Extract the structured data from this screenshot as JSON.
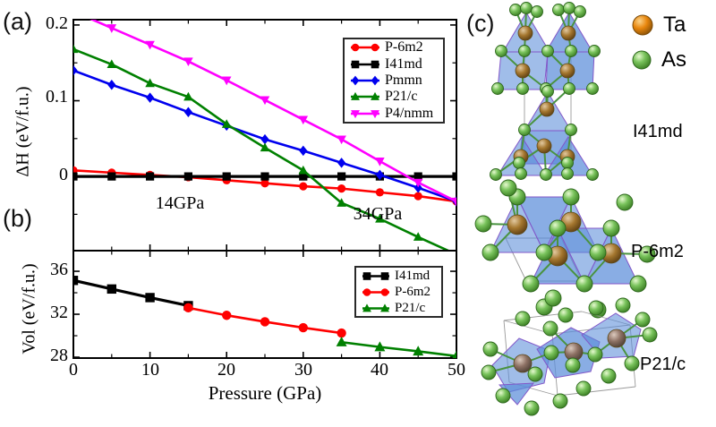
{
  "panel_labels": {
    "a": "(a)",
    "b": "(b)",
    "c": "(c)"
  },
  "chart_data": [
    {
      "id": "enthalpy-vs-pressure",
      "type": "line",
      "ylabel": "ΔH (eV/f.u.)",
      "xlim": [
        0,
        50
      ],
      "ylim": [
        -0.098,
        0.207
      ],
      "grid": false,
      "legend_position": "upper right",
      "x": [
        0,
        5,
        10,
        15,
        20,
        25,
        30,
        35,
        40,
        45,
        50
      ],
      "series": [
        {
          "name": "P-6m2",
          "color": "#ff0000",
          "marker": "circle",
          "values": [
            0.008,
            0.005,
            0.002,
            -0.001,
            -0.005,
            -0.009,
            -0.013,
            -0.016,
            -0.021,
            -0.026,
            -0.033
          ]
        },
        {
          "name": "I41md",
          "color": "#000000",
          "marker": "square",
          "values": [
            0,
            0,
            0,
            0,
            0,
            0,
            0,
            0,
            0,
            0,
            0
          ]
        },
        {
          "name": "Pmmn",
          "color": "#0000ee",
          "marker": "diamond",
          "values": [
            0.14,
            0.121,
            0.104,
            0.085,
            0.067,
            0.049,
            0.034,
            0.018,
            0.002,
            -0.015,
            -0.033
          ]
        },
        {
          "name": "P21/c",
          "color": "#008000",
          "marker": "triangle-up",
          "values": [
            0.168,
            0.148,
            0.123,
            0.105,
            0.069,
            0.038,
            0.008,
            -0.035,
            -0.056,
            -0.08,
            -0.103
          ]
        },
        {
          "name": "P4/nmm",
          "color": "#ff00ff",
          "marker": "triangle-down",
          "values": [
            0.218,
            0.196,
            0.174,
            0.152,
            0.127,
            0.101,
            0.075,
            0.049,
            0.02,
            -0.008,
            -0.033
          ]
        }
      ],
      "yticks": [
        {
          "v": 0,
          "label": "0"
        },
        {
          "v": 0.1,
          "label": "0.1"
        },
        {
          "v": 0.2,
          "label": "0.2"
        }
      ],
      "yticks_minor": [
        -0.05,
        0.05,
        0.15
      ],
      "xticks_major": [
        0,
        10,
        20,
        30,
        40,
        50
      ],
      "xticks_minor": [
        5,
        15,
        25,
        35,
        45
      ],
      "annotations": [
        {
          "text": "14GPa",
          "x": 14,
          "y": -0.037
        },
        {
          "text": "34GPa",
          "x": 39.7,
          "y": -0.052
        }
      ]
    },
    {
      "id": "volume-vs-pressure",
      "type": "line",
      "ylabel": "Vol (eV/f.u.)",
      "xlabel": "Pressure (GPa)",
      "xlim": [
        0,
        50
      ],
      "ylim": [
        27.92,
        37.92
      ],
      "grid": false,
      "legend_position": "upper right",
      "series": [
        {
          "name": "I41md",
          "color": "#000000",
          "marker": "square",
          "x": [
            0,
            5,
            10,
            15
          ],
          "values": [
            35.15,
            34.35,
            33.55,
            32.8
          ]
        },
        {
          "name": "P-6m2",
          "color": "#ff0000",
          "marker": "circle",
          "x": [
            15,
            20,
            25,
            30,
            35
          ],
          "values": [
            32.6,
            31.9,
            31.3,
            30.75,
            30.25
          ]
        },
        {
          "name": "P21/c",
          "color": "#008000",
          "marker": "triangle-up",
          "x": [
            35,
            40,
            45,
            50
          ],
          "values": [
            29.4,
            28.95,
            28.55,
            28.1
          ]
        }
      ],
      "yticks": [
        {
          "v": 28,
          "label": "28"
        },
        {
          "v": 32,
          "label": "32"
        },
        {
          "v": 36,
          "label": "36"
        }
      ],
      "yticks_minor": [
        30,
        34
      ],
      "xticks": [
        {
          "v": 0,
          "label": "0"
        },
        {
          "v": 10,
          "label": "10"
        },
        {
          "v": 20,
          "label": "20"
        },
        {
          "v": 30,
          "label": "30"
        },
        {
          "v": 40,
          "label": "40"
        },
        {
          "v": 50,
          "label": "50"
        }
      ],
      "xticks_minor": [
        5,
        15,
        25,
        35,
        45
      ]
    }
  ],
  "panel_c": {
    "atom_legend": [
      {
        "symbol": "Ta",
        "color": "#e8860d"
      },
      {
        "symbol": "As",
        "color": "#79c35c"
      }
    ],
    "structures": [
      {
        "label": "I41md"
      },
      {
        "label": "P-6m2"
      },
      {
        "label": "P21/c"
      }
    ],
    "polyhedron_color": "#5b8dd9",
    "polyhedron_edge_color": "#8257c8"
  }
}
